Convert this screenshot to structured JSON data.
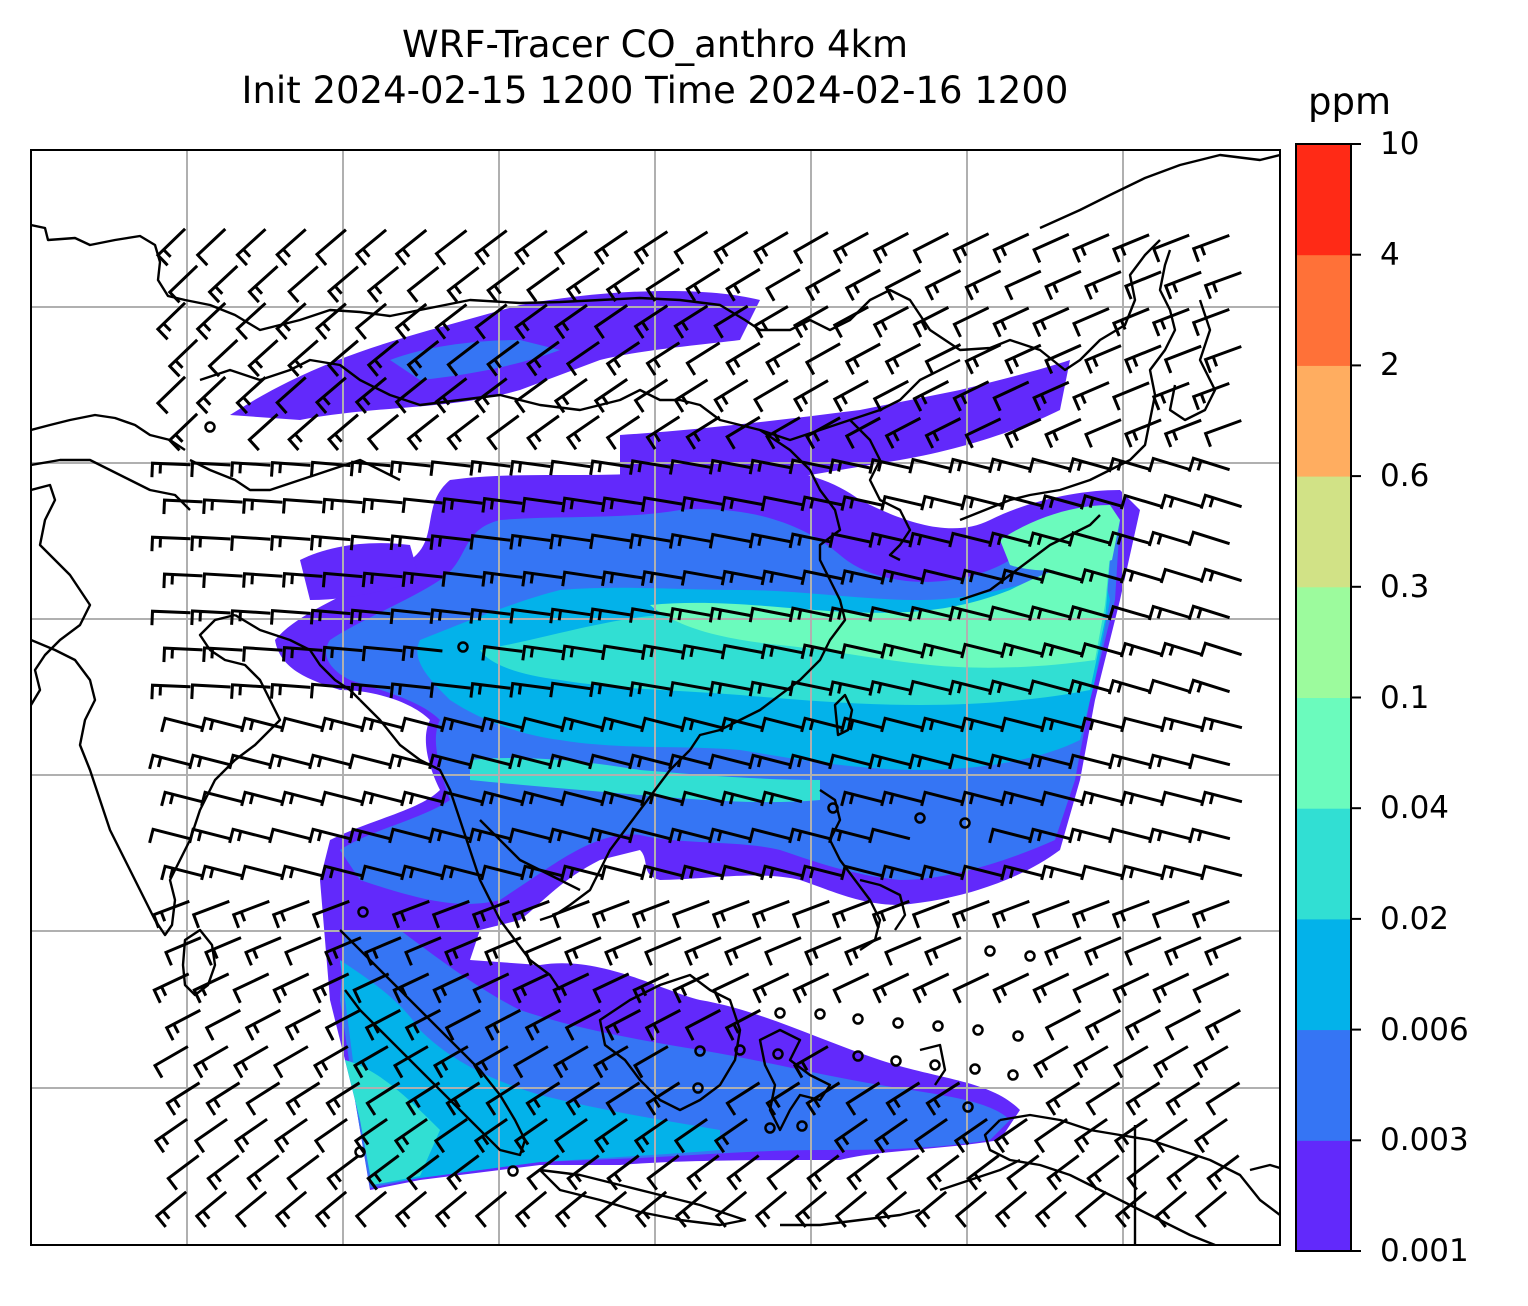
{
  "title": {
    "line1": "WRF-Tracer CO_anthro 4km",
    "line2": "Init 2024-02-15 1200 Time 2024-02-16 1200"
  },
  "colorbar": {
    "unit": "ppm",
    "levels": [
      "0.001",
      "0.003",
      "0.006",
      "0.02",
      "0.04",
      "0.1",
      "0.3",
      "0.6",
      "2",
      "4",
      "10"
    ],
    "colors": [
      "#6229fb",
      "#3575f4",
      "#03b2ea",
      "#31dfd3",
      "#6bfbbd",
      "#9cfb9d",
      "#d1e286",
      "#ffad60",
      "#ff7138",
      "#ff2a16"
    ]
  },
  "map": {
    "field": "CO_anthro",
    "resolution": "4km",
    "gridlines": true,
    "barb_color": "#000000",
    "coastline_color": "#000000"
  }
}
